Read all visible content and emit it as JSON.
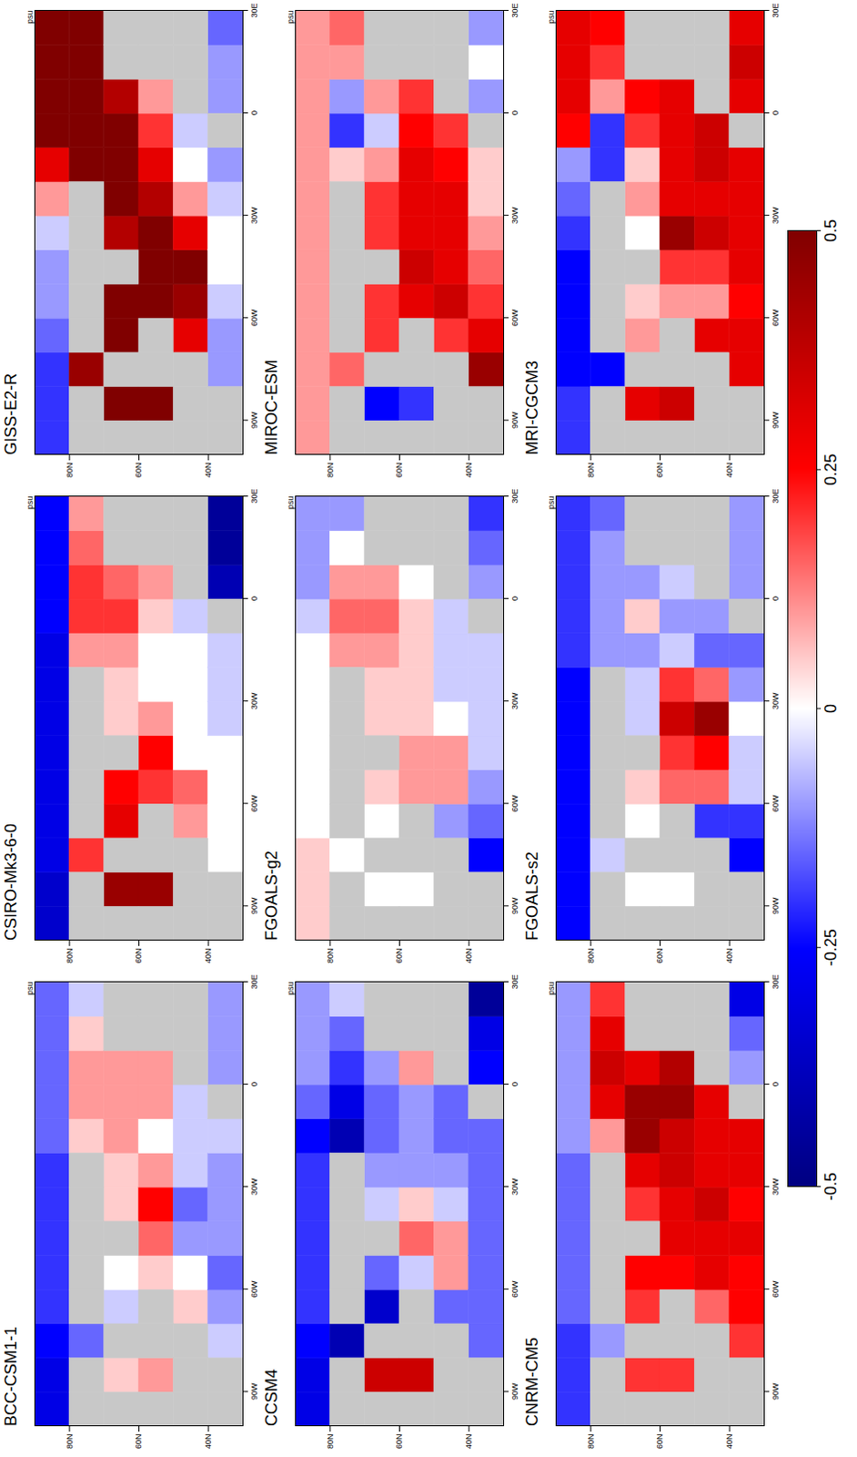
{
  "chart_data": {
    "type": "heatmap",
    "units": "psu",
    "lon": [
      -95,
      -85,
      -75,
      -65,
      -55,
      -45,
      -35,
      -25,
      -15,
      -5,
      5,
      15,
      25
    ],
    "lat": [
      85,
      75,
      65,
      55,
      45,
      35
    ],
    "xlim": [
      -100,
      30
    ],
    "ylim": [
      30,
      90
    ],
    "xticks": [
      {
        "value": -90,
        "label": "90W"
      },
      {
        "value": -60,
        "label": "60W"
      },
      {
        "value": -30,
        "label": "30W"
      },
      0,
      {
        "value": 30,
        "label": "30E"
      }
    ],
    "yticks": [
      {
        "value": 40,
        "label": "40N"
      },
      {
        "value": 60,
        "label": "60N"
      },
      {
        "value": 80,
        "label": "80N"
      }
    ],
    "colorbar": {
      "range": [
        -0.5,
        0.5
      ],
      "ticks": [
        -0.5,
        -0.25,
        0,
        0.25,
        0.5
      ],
      "colors": [
        "#000080",
        "#0000ff",
        "#ffffff",
        "#ff0000",
        "#800000"
      ]
    },
    "panels": [
      {
        "title": "BCC-CSM1-1",
        "cells": [
          [
            -0.3,
            -0.3,
            -0.25,
            -0.2,
            -0.2,
            -0.2,
            -0.2,
            -0.2,
            -0.15,
            -0.15,
            -0.15,
            -0.15,
            -0.15
          ],
          [
            null,
            null,
            -0.15,
            null,
            null,
            null,
            null,
            null,
            0.05,
            0.1,
            0.1,
            0.05,
            -0.05
          ],
          [
            null,
            0.05,
            null,
            -0.05,
            0.0,
            null,
            0.05,
            0.05,
            0.1,
            0.1,
            0.1,
            null,
            null
          ],
          [
            null,
            0.1,
            null,
            null,
            0.05,
            0.15,
            0.25,
            0.1,
            0.0,
            0.1,
            0.1,
            null,
            null
          ],
          [
            null,
            null,
            null,
            0.05,
            0.0,
            -0.1,
            -0.15,
            -0.05,
            -0.05,
            -0.05,
            null,
            null,
            null
          ],
          [
            null,
            null,
            -0.05,
            -0.1,
            -0.15,
            -0.1,
            -0.1,
            -0.1,
            -0.05,
            null,
            -0.1,
            -0.1,
            -0.1
          ]
        ]
      },
      {
        "title": "CSIRO-Mk3-6-0",
        "cells": [
          [
            -0.35,
            -0.35,
            -0.3,
            -0.3,
            -0.3,
            -0.3,
            -0.3,
            -0.3,
            -0.3,
            -0.25,
            -0.25,
            -0.25,
            -0.25
          ],
          [
            null,
            null,
            0.2,
            null,
            null,
            null,
            null,
            null,
            0.1,
            0.2,
            0.2,
            0.15,
            0.1
          ],
          [
            null,
            0.45,
            null,
            0.3,
            0.25,
            null,
            0.05,
            0.05,
            0.1,
            0.2,
            0.15,
            null,
            null
          ],
          [
            null,
            0.45,
            null,
            null,
            0.2,
            0.25,
            0.1,
            0.0,
            0.0,
            0.05,
            0.1,
            null,
            null
          ],
          [
            null,
            null,
            null,
            0.1,
            0.15,
            0.0,
            0.0,
            0.0,
            0.0,
            -0.05,
            null,
            null,
            null
          ],
          [
            null,
            null,
            0.0,
            0.0,
            0.0,
            0.0,
            -0.05,
            -0.05,
            -0.05,
            null,
            -0.4,
            -0.45,
            -0.45
          ]
        ]
      },
      {
        "title": "GISS-E2-R",
        "cells": [
          [
            -0.2,
            -0.2,
            -0.2,
            -0.15,
            -0.1,
            -0.1,
            -0.05,
            0.1,
            0.3,
            0.5,
            0.5,
            0.5,
            0.5
          ],
          [
            null,
            null,
            0.45,
            null,
            null,
            null,
            null,
            null,
            0.5,
            0.5,
            0.5,
            0.5,
            0.5
          ],
          [
            null,
            0.5,
            null,
            0.5,
            0.5,
            null,
            0.4,
            0.5,
            0.5,
            0.5,
            0.4,
            null,
            null
          ],
          [
            null,
            0.5,
            null,
            null,
            0.5,
            0.5,
            0.5,
            0.4,
            0.3,
            0.2,
            0.1,
            null,
            null
          ],
          [
            null,
            null,
            null,
            0.3,
            0.45,
            0.5,
            0.3,
            0.1,
            0.0,
            -0.05,
            null,
            null,
            null
          ],
          [
            null,
            null,
            -0.1,
            -0.1,
            -0.05,
            0.0,
            0.0,
            -0.05,
            -0.1,
            null,
            -0.1,
            -0.1,
            -0.15
          ]
        ]
      },
      {
        "title": "CCSM4",
        "cells": [
          [
            -0.3,
            -0.3,
            -0.25,
            -0.2,
            -0.2,
            -0.2,
            -0.2,
            -0.2,
            -0.25,
            -0.15,
            -0.1,
            -0.1,
            -0.1
          ],
          [
            null,
            null,
            -0.4,
            null,
            null,
            null,
            null,
            null,
            -0.4,
            -0.3,
            -0.2,
            -0.15,
            -0.05
          ],
          [
            null,
            0.35,
            null,
            -0.35,
            -0.15,
            null,
            -0.05,
            -0.1,
            -0.15,
            -0.15,
            -0.1,
            null,
            null
          ],
          [
            null,
            0.35,
            null,
            null,
            -0.05,
            0.15,
            0.05,
            -0.1,
            -0.1,
            -0.1,
            0.1,
            null,
            null
          ],
          [
            null,
            null,
            null,
            -0.15,
            0.1,
            0.1,
            -0.05,
            -0.1,
            -0.15,
            -0.15,
            null,
            null,
            null
          ],
          [
            null,
            null,
            -0.15,
            -0.15,
            -0.15,
            -0.15,
            -0.15,
            -0.15,
            -0.15,
            null,
            -0.25,
            -0.3,
            -0.45
          ]
        ]
      },
      {
        "title": "FGOALS-g2",
        "cells": [
          [
            0.05,
            0.05,
            0.05,
            0.0,
            0.0,
            0.0,
            0.0,
            0.0,
            0.0,
            -0.05,
            -0.1,
            -0.1,
            -0.1
          ],
          [
            null,
            null,
            0.0,
            null,
            null,
            null,
            null,
            null,
            0.1,
            0.15,
            0.1,
            0.0,
            -0.1
          ],
          [
            null,
            0.0,
            null,
            0.0,
            0.05,
            null,
            0.05,
            0.05,
            0.1,
            0.15,
            0.1,
            null,
            null
          ],
          [
            null,
            0.0,
            null,
            null,
            0.1,
            0.1,
            0.05,
            0.05,
            0.05,
            0.05,
            0.0,
            null,
            null
          ],
          [
            null,
            null,
            null,
            -0.1,
            0.1,
            0.1,
            0.0,
            -0.05,
            -0.05,
            -0.05,
            null,
            null,
            null
          ],
          [
            null,
            null,
            -0.25,
            -0.15,
            -0.1,
            -0.05,
            -0.05,
            -0.05,
            -0.05,
            null,
            -0.1,
            -0.15,
            -0.2
          ]
        ]
      },
      {
        "title": "MIROC-ESM",
        "cells": [
          [
            0.1,
            0.1,
            0.1,
            0.1,
            0.1,
            0.1,
            0.1,
            0.1,
            0.1,
            0.1,
            0.1,
            0.1,
            0.1
          ],
          [
            null,
            null,
            0.15,
            null,
            null,
            null,
            null,
            null,
            0.05,
            -0.2,
            -0.1,
            0.1,
            0.15
          ],
          [
            null,
            -0.25,
            null,
            0.2,
            0.2,
            null,
            0.2,
            0.2,
            0.1,
            -0.05,
            0.1,
            null,
            null
          ],
          [
            null,
            -0.2,
            null,
            null,
            0.3,
            0.35,
            0.3,
            0.3,
            0.3,
            0.25,
            0.2,
            null,
            null
          ],
          [
            null,
            null,
            null,
            0.2,
            0.35,
            0.3,
            0.3,
            0.3,
            0.25,
            0.2,
            null,
            null,
            null
          ],
          [
            null,
            null,
            0.45,
            0.3,
            0.2,
            0.15,
            0.1,
            0.05,
            0.05,
            null,
            -0.1,
            0.0,
            -0.1
          ]
        ]
      },
      {
        "title": "CNRM-CM5",
        "cells": [
          [
            -0.2,
            -0.2,
            -0.2,
            -0.15,
            -0.15,
            -0.15,
            -0.15,
            -0.15,
            -0.1,
            -0.1,
            -0.1,
            -0.1,
            -0.1
          ],
          [
            null,
            null,
            -0.1,
            null,
            null,
            null,
            null,
            null,
            0.1,
            0.3,
            0.35,
            0.3,
            0.2
          ],
          [
            null,
            0.2,
            null,
            0.2,
            0.25,
            null,
            0.2,
            0.3,
            0.45,
            0.45,
            0.3,
            null,
            null
          ],
          [
            null,
            0.2,
            null,
            null,
            0.25,
            0.3,
            0.3,
            0.35,
            0.35,
            0.45,
            0.4,
            null,
            null
          ],
          [
            null,
            null,
            null,
            0.15,
            0.3,
            0.3,
            0.35,
            0.3,
            0.3,
            0.3,
            null,
            null,
            null
          ],
          [
            null,
            null,
            0.2,
            0.25,
            0.25,
            0.3,
            0.25,
            0.3,
            0.3,
            null,
            -0.1,
            -0.15,
            -0.3
          ]
        ]
      },
      {
        "title": "FGOALS-s2",
        "cells": [
          [
            -0.25,
            -0.25,
            -0.25,
            -0.25,
            -0.25,
            -0.25,
            -0.25,
            -0.25,
            -0.2,
            -0.2,
            -0.2,
            -0.2,
            -0.2
          ],
          [
            null,
            null,
            -0.05,
            null,
            null,
            null,
            null,
            null,
            -0.1,
            -0.1,
            -0.1,
            -0.1,
            -0.15
          ],
          [
            null,
            0.0,
            null,
            0.0,
            0.05,
            null,
            -0.05,
            -0.05,
            -0.1,
            0.05,
            -0.1,
            null,
            null
          ],
          [
            null,
            0.0,
            null,
            null,
            0.15,
            0.2,
            0.35,
            0.2,
            -0.05,
            -0.1,
            -0.05,
            null,
            null
          ],
          [
            null,
            null,
            null,
            -0.2,
            0.15,
            0.25,
            0.45,
            0.15,
            -0.15,
            -0.1,
            null,
            null,
            null
          ],
          [
            null,
            null,
            -0.25,
            -0.2,
            -0.05,
            -0.05,
            0.0,
            -0.1,
            -0.15,
            null,
            -0.1,
            -0.1,
            -0.1
          ]
        ]
      },
      {
        "title": "MRI-CGCM3",
        "cells": [
          [
            -0.2,
            -0.2,
            -0.25,
            -0.25,
            -0.25,
            -0.25,
            -0.2,
            -0.15,
            -0.1,
            0.25,
            0.3,
            0.3,
            0.3
          ],
          [
            null,
            null,
            -0.25,
            null,
            null,
            null,
            null,
            null,
            -0.2,
            -0.2,
            0.1,
            0.2,
            0.25
          ],
          [
            null,
            0.3,
            null,
            0.1,
            0.05,
            null,
            0.0,
            0.1,
            0.05,
            0.2,
            0.25,
            null,
            null
          ],
          [
            null,
            0.35,
            null,
            null,
            0.1,
            0.2,
            0.45,
            0.3,
            0.3,
            0.3,
            0.3,
            null,
            null
          ],
          [
            null,
            null,
            null,
            0.3,
            0.1,
            0.2,
            0.35,
            0.3,
            0.35,
            0.35,
            null,
            null,
            null
          ],
          [
            null,
            null,
            0.3,
            0.3,
            0.25,
            0.3,
            0.3,
            0.3,
            0.3,
            null,
            0.3,
            0.35,
            0.3
          ]
        ]
      }
    ]
  }
}
